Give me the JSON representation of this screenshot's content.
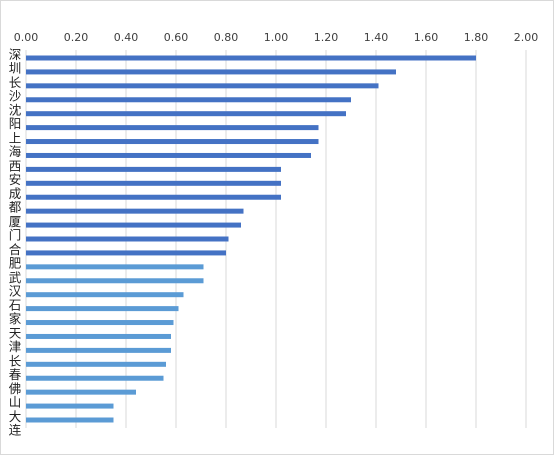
{
  "chart_data": {
    "type": "hbar",
    "categories": [
      "深圳",
      null,
      "长沙",
      null,
      "沈阳",
      null,
      "上海",
      null,
      "西安",
      null,
      "成都",
      null,
      "厦门",
      null,
      "合肥",
      null,
      "武汉",
      null,
      "石家",
      null,
      "天津",
      null,
      "长春",
      null,
      "佛山",
      null,
      "大连"
    ],
    "values": [
      1.8,
      1.48,
      1.41,
      1.3,
      1.28,
      1.17,
      1.17,
      1.14,
      1.02,
      1.02,
      1.02,
      0.87,
      0.86,
      0.81,
      0.8,
      0.71,
      0.71,
      0.63,
      0.61,
      0.59,
      0.58,
      0.58,
      0.56,
      0.55,
      0.44,
      0.35,
      0.35
    ],
    "colors": [
      "#4472c4",
      "#4472c4",
      "#4472c4",
      "#4472c4",
      "#4472c4",
      "#4472c4",
      "#4472c4",
      "#4472c4",
      "#4472c4",
      "#4472c4",
      "#4472c4",
      "#4472c4",
      "#4472c4",
      "#4472c4",
      "#4472c4",
      "#5b9bd5",
      "#5b9bd5",
      "#5b9bd5",
      "#5b9bd5",
      "#5b9bd5",
      "#5b9bd5",
      "#5b9bd5",
      "#5b9bd5",
      "#5b9bd5",
      "#5b9bd5",
      "#5b9bd5",
      "#5b9bd5"
    ],
    "xlim": [
      0,
      2
    ],
    "xticks": [
      {
        "value": 0,
        "label": "0.00"
      },
      {
        "value": 0.2,
        "label": "0.20"
      },
      {
        "value": 0.4,
        "label": "0.40"
      },
      {
        "value": 0.6,
        "label": "0.60"
      },
      {
        "value": 0.8,
        "label": "0.80"
      },
      {
        "value": 1,
        "label": "1.00"
      },
      {
        "value": 1.2,
        "label": "1.20"
      },
      {
        "value": 1.4,
        "label": "1.40"
      },
      {
        "value": 1.6,
        "label": "1.60"
      },
      {
        "value": 1.8,
        "label": "1.80"
      },
      {
        "value": 2,
        "label": "2.00"
      }
    ],
    "grid": true
  }
}
